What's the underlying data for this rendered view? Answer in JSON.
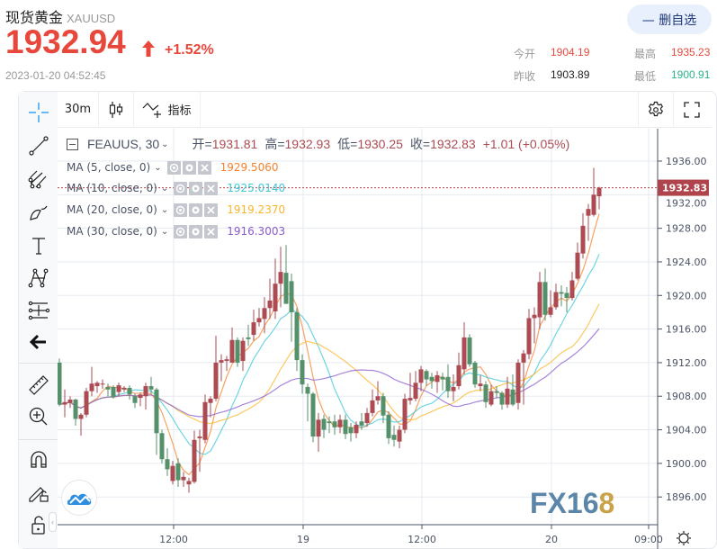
{
  "header": {
    "title": "现货黄金",
    "symbol": "XAUUSD",
    "price": "1932.94",
    "change_pct": "+1.52%",
    "direction": "up",
    "timestamp": "2023-01-20 04:52:45",
    "unwatch_button": "— 删自选",
    "stats": [
      {
        "label": "今开",
        "value": "1904.19",
        "color": "#e8483c"
      },
      {
        "label": "最高",
        "value": "1935.23",
        "color": "#e8483c"
      },
      {
        "label": "昨收",
        "value": "1903.89",
        "color": "#222222"
      },
      {
        "label": "最低",
        "value": "1900.91",
        "color": "#2bb38a"
      }
    ]
  },
  "toolbar": {
    "interval": "30m",
    "indicators_label": "指标"
  },
  "left_tools": [
    "crosshair-icon",
    "trend-line-icon",
    "pitchfork-icon",
    "brush-icon",
    "text-icon",
    "pattern-icon",
    "measure-range-icon",
    "back-arrow-icon",
    "ruler-icon",
    "zoom-in-icon",
    "magnet-icon",
    "lock-drawing-icon",
    "unlock-icon"
  ],
  "legend": {
    "instrument": "FEAUUS, 30",
    "open_label": "开=",
    "open": "1931.81",
    "high_label": "高=",
    "high": "1932.93",
    "low_label": "低=",
    "low": "1930.25",
    "close_label": "收=",
    "close": "1932.83",
    "change": "+1.01 (+0.05%)",
    "ma": [
      {
        "label": "MA (5, close, 0)",
        "period": 5,
        "value": "1929.5060",
        "color": "#f7822e"
      },
      {
        "label": "MA (10, close, 0)",
        "period": 10,
        "value": "1925.0140",
        "color": "#3fc7d8"
      },
      {
        "label": "MA (20, close, 0)",
        "period": 20,
        "value": "1919.2370",
        "color": "#fbb52b"
      },
      {
        "label": "MA (30, close, 0)",
        "period": 30,
        "value": "1916.3003",
        "color": "#8a5cd0"
      }
    ]
  },
  "colors": {
    "up": "#ad4b53",
    "down": "#54916a",
    "last_price": "#b0444c"
  },
  "chart_data": {
    "type": "candlestick",
    "interval": "30m",
    "ylim": [
      1892,
      1940
    ],
    "y_ticks": [
      "1936.00",
      "1932.00",
      "1928.00",
      "1924.00",
      "1920.00",
      "1916.00",
      "1912.00",
      "1908.00",
      "1904.00",
      "1900.00",
      "1896.00"
    ],
    "x_ticks": [
      {
        "label": "12:00",
        "index": 21
      },
      {
        "label": "19",
        "index": 45
      },
      {
        "label": "12:00",
        "index": 67
      },
      {
        "label": "20",
        "index": 91
      },
      {
        "label": "09:00",
        "index": 109
      }
    ],
    "last_price": "1932.83",
    "candles": [
      [
        1912,
        1912.5,
        1906.8,
        1907
      ],
      [
        1907,
        1908.8,
        1905.5,
        1907.3
      ],
      [
        1907.2,
        1908,
        1906.6,
        1907.6
      ],
      [
        1907.6,
        1907.7,
        1904.5,
        1905.3
      ],
      [
        1905.3,
        1906,
        1903.3,
        1905.8
      ],
      [
        1905.8,
        1909,
        1905.5,
        1908.6
      ],
      [
        1908.6,
        1911.5,
        1908,
        1909.5
      ],
      [
        1909.2,
        1909.8,
        1908.4,
        1909.6
      ],
      [
        1909.4,
        1910,
        1908.9,
        1909.5
      ],
      [
        1909.1,
        1909.5,
        1908,
        1908.8
      ],
      [
        1909.1,
        1909.3,
        1907.7,
        1907.9
      ],
      [
        1908.5,
        1909.6,
        1908,
        1909.3
      ],
      [
        1908.8,
        1909.2,
        1908.5,
        1909
      ],
      [
        1909,
        1909.3,
        1907.6,
        1908.2
      ],
      [
        1908,
        1908.3,
        1906.6,
        1907.2
      ],
      [
        1907.8,
        1908.4,
        1906.8,
        1908.2
      ],
      [
        1908,
        1909.6,
        1906.4,
        1909.2
      ],
      [
        1909.2,
        1910.3,
        1908.3,
        1908.8
      ],
      [
        1908.8,
        1909,
        1901,
        1903.6
      ],
      [
        1903.6,
        1904,
        1900,
        1900.5
      ],
      [
        1900.5,
        1901.8,
        1898.5,
        1899.3
      ],
      [
        1897.9,
        1900.3,
        1897.5,
        1899.7
      ],
      [
        1900,
        1900.6,
        1897.2,
        1898
      ],
      [
        1898,
        1899,
        1897.2,
        1898.4
      ],
      [
        1897.5,
        1898.3,
        1896.5,
        1897.9
      ],
      [
        1897.8,
        1903.9,
        1897.6,
        1902.8
      ],
      [
        1903,
        1904,
        1899,
        1903.2
      ],
      [
        1902.8,
        1908.2,
        1902.4,
        1907.3
      ],
      [
        1907.2,
        1908,
        1905.5,
        1907.7
      ],
      [
        1907.7,
        1915.2,
        1907.4,
        1912
      ],
      [
        1912,
        1913,
        1909.8,
        1912.3
      ],
      [
        1912.2,
        1912.8,
        1911,
        1912.4
      ],
      [
        1912,
        1916.2,
        1912,
        1914.7
      ],
      [
        1914.7,
        1915,
        1911.5,
        1912
      ],
      [
        1912.2,
        1915,
        1911,
        1914.6
      ],
      [
        1915,
        1916.5,
        1914,
        1914.8
      ],
      [
        1915.3,
        1918.3,
        1914.6,
        1916.8
      ],
      [
        1916.8,
        1918.5,
        1916.3,
        1917.3
      ],
      [
        1917.2,
        1919.8,
        1915.5,
        1918.5
      ],
      [
        1918.5,
        1922,
        1917.2,
        1919.4
      ],
      [
        1918.1,
        1924.4,
        1917.2,
        1921.4
      ],
      [
        1921.4,
        1925.8,
        1918.6,
        1922.8
      ],
      [
        1922.7,
        1926,
        1919,
        1919
      ],
      [
        1921.7,
        1922.6,
        1914.5,
        1918
      ],
      [
        1918,
        1918.5,
        1911,
        1912.3
      ],
      [
        1912.3,
        1913,
        1908.3,
        1909.4
      ],
      [
        1909.1,
        1909.5,
        1905,
        1908.3
      ],
      [
        1908.3,
        1908.5,
        1902.5,
        1903.2
      ],
      [
        1903.2,
        1906,
        1901.4,
        1905.2
      ],
      [
        1905.3,
        1905.8,
        1903,
        1904
      ],
      [
        1905,
        1905.6,
        1903.6,
        1904.8
      ],
      [
        1905,
        1905.8,
        1903.4,
        1904.3
      ],
      [
        1904.3,
        1905.8,
        1903.6,
        1905.2
      ],
      [
        1905.2,
        1905.8,
        1902.9,
        1903.5
      ],
      [
        1904.3,
        1904.8,
        1902.6,
        1903.6
      ],
      [
        1903.6,
        1905,
        1903,
        1904.6
      ],
      [
        1905,
        1906,
        1904,
        1904.5
      ],
      [
        1904.8,
        1906.6,
        1904.4,
        1906
      ],
      [
        1906,
        1908.8,
        1905.6,
        1907.5
      ],
      [
        1907.5,
        1909.8,
        1907,
        1908
      ],
      [
        1908,
        1908.4,
        1904.8,
        1905.7
      ],
      [
        1905.8,
        1906.2,
        1902.3,
        1903
      ],
      [
        1903.4,
        1904.5,
        1902,
        1902.8
      ],
      [
        1902.6,
        1904.5,
        1901.8,
        1904
      ],
      [
        1904,
        1908.3,
        1903.6,
        1907.7
      ],
      [
        1907.5,
        1910.8,
        1907,
        1907.8
      ],
      [
        1907.7,
        1911,
        1907.4,
        1909.6
      ],
      [
        1909.6,
        1911.6,
        1908.6,
        1911.2
      ],
      [
        1911,
        1911.2,
        1909.2,
        1910
      ],
      [
        1910.3,
        1910.8,
        1908.9,
        1909.8
      ],
      [
        1909.7,
        1911,
        1908.4,
        1910.5
      ],
      [
        1910.3,
        1910.8,
        1908.7,
        1910
      ],
      [
        1910.3,
        1911.8,
        1907.8,
        1908.6
      ],
      [
        1908.6,
        1910.6,
        1907.4,
        1909.1
      ],
      [
        1909.2,
        1913.2,
        1908.8,
        1911.7
      ],
      [
        1911.2,
        1916.8,
        1910.6,
        1915
      ],
      [
        1915,
        1915.4,
        1911.5,
        1911.8
      ],
      [
        1912,
        1912.2,
        1909,
        1909.4
      ],
      [
        1909.2,
        1910.5,
        1908.6,
        1909.5
      ],
      [
        1909.4,
        1909.8,
        1906.6,
        1907.3
      ],
      [
        1907,
        1909.4,
        1906.8,
        1908.6
      ],
      [
        1908.6,
        1909.2,
        1907.8,
        1908.4
      ],
      [
        1908.4,
        1908.6,
        1906.4,
        1907
      ],
      [
        1907,
        1910.3,
        1906.6,
        1908.9
      ],
      [
        1908.8,
        1910.6,
        1906.8,
        1907
      ],
      [
        1907.2,
        1912.4,
        1906.4,
        1912
      ],
      [
        1912,
        1913.5,
        1907,
        1913.1
      ],
      [
        1913,
        1918.4,
        1912.4,
        1917.3
      ],
      [
        1917.3,
        1918.6,
        1914.3,
        1917.7
      ],
      [
        1917.4,
        1922.8,
        1916,
        1921.6
      ],
      [
        1921.6,
        1923.2,
        1917,
        1917.7
      ],
      [
        1917.7,
        1920.6,
        1917.4,
        1918.6
      ],
      [
        1918.6,
        1921.4,
        1918.3,
        1920.4
      ],
      [
        1920.4,
        1921.2,
        1918.7,
        1920.2
      ],
      [
        1920.3,
        1921,
        1918,
        1919.7
      ],
      [
        1919.7,
        1922.8,
        1919.4,
        1921.8
      ],
      [
        1922,
        1926.3,
        1921.8,
        1925.1
      ],
      [
        1925,
        1929.8,
        1924.4,
        1928.3
      ],
      [
        1929.5,
        1930.9,
        1926.5,
        1930.3
      ],
      [
        1929.6,
        1935.2,
        1929.4,
        1932
      ],
      [
        1931.81,
        1932.93,
        1930.25,
        1932.83
      ]
    ]
  },
  "watermark": "FX168"
}
